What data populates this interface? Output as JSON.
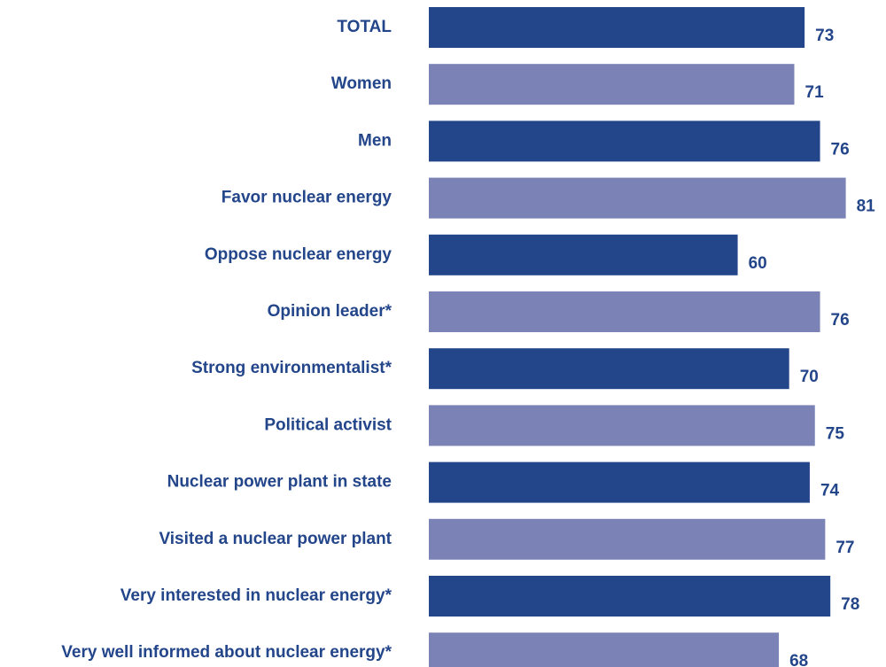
{
  "chart_data": {
    "type": "barh",
    "categories": [
      "TOTAL",
      "Women",
      "Men",
      "Favor nuclear energy",
      "Oppose nuclear energy",
      "Opinion leader*",
      "Strong environmentalist*",
      "Political activist",
      "Nuclear power plant in state",
      "Visited a nuclear power plant",
      "Very interested in nuclear energy*",
      "Very well informed about nuclear energy*"
    ],
    "values": [
      73,
      71,
      76,
      81,
      60,
      76,
      70,
      75,
      74,
      77,
      78,
      68
    ],
    "colors": [
      "#23458a",
      "#7b82b5",
      "#23458a",
      "#7b82b5",
      "#23458a",
      "#7b82b5",
      "#23458a",
      "#7b82b5",
      "#23458a",
      "#7b82b5",
      "#23458a",
      "#7b82b5"
    ]
  }
}
